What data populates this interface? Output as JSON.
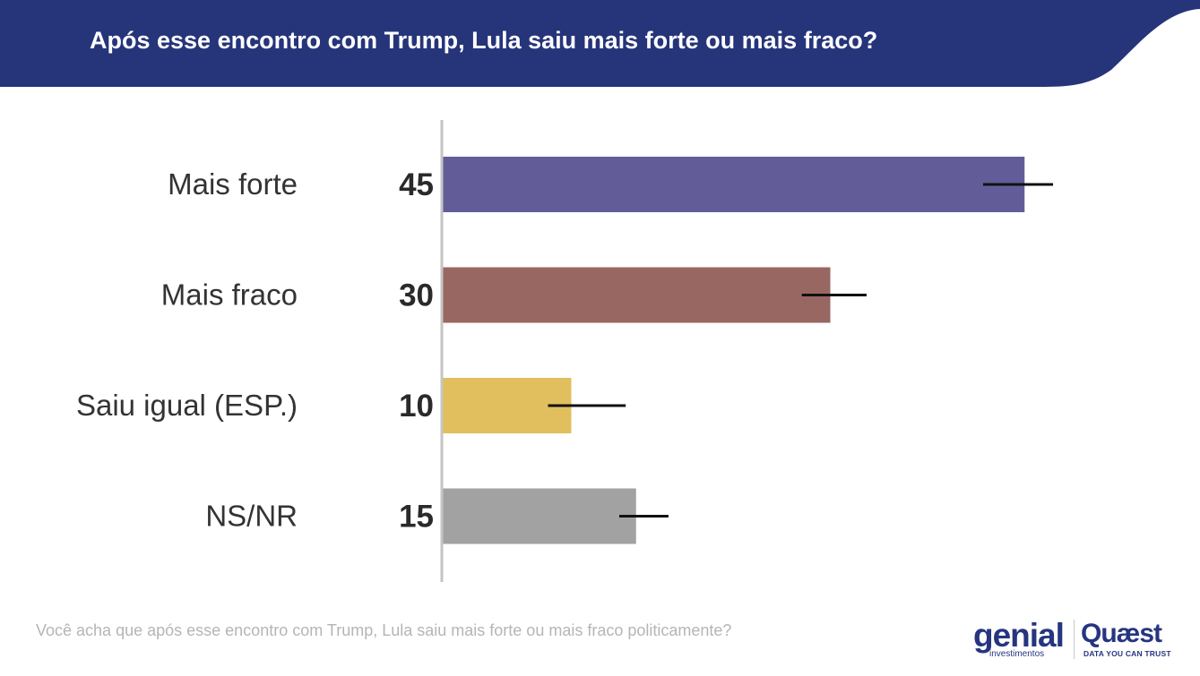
{
  "header": {
    "title": "Após esse encontro com Trump, Lula saiu mais forte ou mais fraco?",
    "background_color": "#26347a"
  },
  "chart_data": {
    "type": "bar",
    "orientation": "horizontal",
    "categories": [
      "Mais forte",
      "Mais fraco",
      "Saiu igual (ESP.)",
      "NS/NR"
    ],
    "values": [
      45,
      30,
      10,
      15
    ],
    "colors": [
      "#625d99",
      "#986762",
      "#e1bf5e",
      "#a2a2a2"
    ],
    "error_bar_upper": [
      47.2,
      32.8,
      14.2,
      17.5
    ],
    "error_bar_lower": [
      41.8,
      27.8,
      8.2,
      13.7
    ],
    "value_labels": [
      "45",
      "30",
      "10",
      "15"
    ],
    "grid": false
  },
  "footnote": "Você acha que após esse encontro com Trump, Lula saiu mais forte ou mais fraco politicamente?",
  "logos": {
    "genial_word": "genial",
    "genial_sub": "investimentos",
    "quaest_word": "Quæst",
    "quaest_tagline": "DATA YOU CAN TRUST"
  }
}
